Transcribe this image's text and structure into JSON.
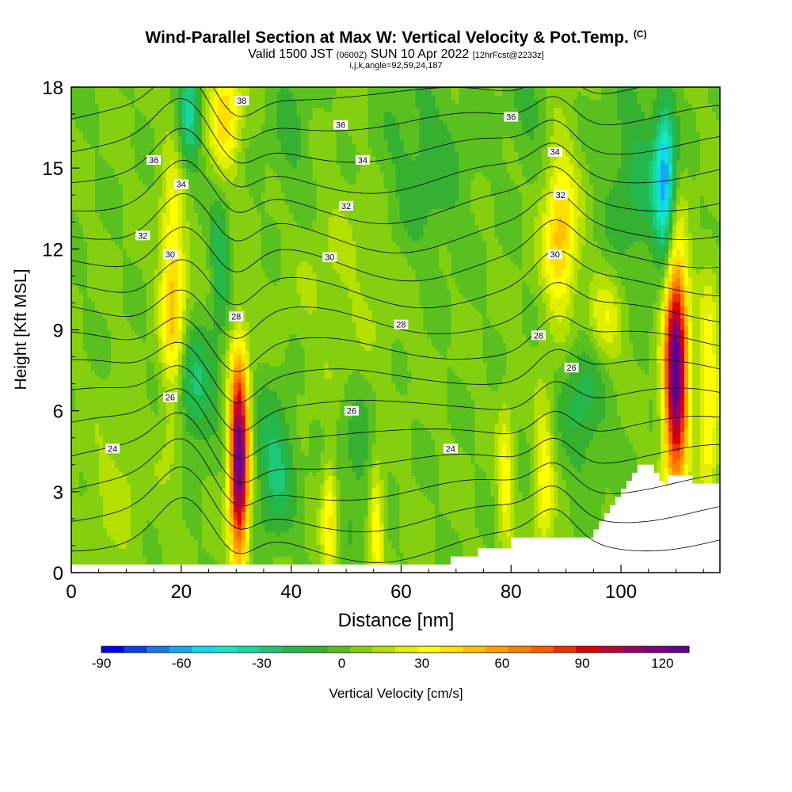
{
  "titles": {
    "main": "Wind-Parallel Section at Max W: Vertical Velocity & Pot.Temp.",
    "copyright": "(C)",
    "valid_prefix": "Valid 1500 JST",
    "valid_utc": "(0600Z)",
    "valid_date": "SUN 10 Apr 2022",
    "forecast": "[12hrFcst@2233z]",
    "indices": "i,j,k,angle=92,59,24,187"
  },
  "chart_data": {
    "type": "heatmap",
    "title": "Wind-Parallel Section at Max W: Vertical Velocity & Pot.Temp.",
    "xlabel": "Distance [nm]",
    "ylabel": "Height [Kft MSL]",
    "xlim": [
      0,
      118
    ],
    "ylim": [
      0,
      18
    ],
    "xticks": [
      0,
      20,
      40,
      60,
      80,
      100
    ],
    "yticks": [
      0,
      3,
      6,
      9,
      12,
      15,
      18
    ],
    "colorbar": {
      "label": "Vertical Velocity [cm/s]",
      "range": [
        -90,
        130
      ],
      "ticks": [
        -90,
        -60,
        -30,
        0,
        30,
        60,
        90,
        120
      ],
      "colors": [
        "#0000f0",
        "#0a3cf0",
        "#1478f0",
        "#12aaf0",
        "#10d8f0",
        "#12e8c8",
        "#18d8a0",
        "#1ec878",
        "#22b84c",
        "#36b030",
        "#5ac020",
        "#84d010",
        "#b4e000",
        "#e0f000",
        "#ffff00",
        "#ffe000",
        "#ffc000",
        "#ffa000",
        "#ff8000",
        "#ff5a00",
        "#f03000",
        "#e00000",
        "#c00030",
        "#a00060",
        "#800080",
        "#600090"
      ]
    },
    "velocity_cells": [
      {
        "x": 30.5,
        "y": 4.2,
        "w": 130,
        "sx": 1.2,
        "sy": 2.6
      },
      {
        "x": 110,
        "y": 7.5,
        "w": 130,
        "sx": 1.5,
        "sy": 3.0
      },
      {
        "x": 18.5,
        "y": 10,
        "w": 45,
        "sx": 1.6,
        "sy": 3.5
      },
      {
        "x": 28,
        "y": 17,
        "w": 40,
        "sx": 2.0,
        "sy": 1.5
      },
      {
        "x": 89,
        "y": 12.5,
        "w": 45,
        "sx": 2.2,
        "sy": 2.2
      },
      {
        "x": 47,
        "y": 2.0,
        "w": 35,
        "sx": 1.0,
        "sy": 1.7
      },
      {
        "x": 55.5,
        "y": 2.0,
        "w": 35,
        "sx": 1.0,
        "sy": 1.7
      },
      {
        "x": 79,
        "y": 3.5,
        "w": 30,
        "sx": 1.0,
        "sy": 1.8
      },
      {
        "x": 86,
        "y": 3.5,
        "w": 30,
        "sx": 1.2,
        "sy": 2.2
      },
      {
        "x": 116,
        "y": 6.5,
        "w": 35,
        "sx": 1.3,
        "sy": 3.0
      },
      {
        "x": 97,
        "y": 9.3,
        "w": 25,
        "sx": 2.5,
        "sy": 1.2
      },
      {
        "x": 108,
        "y": 14.5,
        "w": -60,
        "sx": 1.3,
        "sy": 2.0
      },
      {
        "x": 22,
        "y": 6.8,
        "w": -30,
        "sx": 3.0,
        "sy": 1.5
      },
      {
        "x": 37,
        "y": 4.0,
        "w": -30,
        "sx": 2.5,
        "sy": 1.8
      },
      {
        "x": 27,
        "y": 11.5,
        "w": -25,
        "sx": 1.2,
        "sy": 1.8
      },
      {
        "x": 21.5,
        "y": 17,
        "w": -35,
        "sx": 1.5,
        "sy": 1.5
      },
      {
        "x": 93,
        "y": 6.5,
        "w": -22,
        "sx": 3.0,
        "sy": 2.0
      },
      {
        "x": 103,
        "y": 14.5,
        "w": -20,
        "sx": 4.0,
        "sy": 2.5
      },
      {
        "x": 64,
        "y": 15,
        "w": -15,
        "sx": 6.0,
        "sy": 2.5
      },
      {
        "x": 52,
        "y": 4.0,
        "w": -15,
        "sx": 3.0,
        "sy": 2.0
      },
      {
        "x": 40,
        "y": 16,
        "w": -12,
        "sx": 3.0,
        "sy": 2.0
      },
      {
        "x": 83,
        "y": 17,
        "w": -12,
        "sx": 2.5,
        "sy": 1.5
      },
      {
        "x": 8,
        "y": 3.0,
        "w": 10,
        "sx": 4.0,
        "sy": 2.0
      },
      {
        "x": 50,
        "y": 11,
        "w": 8,
        "sx": 8.0,
        "sy": 3.0
      }
    ],
    "terrain": [
      [
        0,
        0.3
      ],
      [
        69,
        0.3
      ],
      [
        69,
        0.6
      ],
      [
        74,
        0.6
      ],
      [
        74,
        0.9
      ],
      [
        80,
        0.9
      ],
      [
        80,
        1.3
      ],
      [
        95,
        1.3
      ],
      [
        95,
        1.6
      ],
      [
        96,
        1.6
      ],
      [
        96,
        1.9
      ],
      [
        97,
        1.9
      ],
      [
        97,
        2.2
      ],
      [
        98,
        2.2
      ],
      [
        98,
        2.5
      ],
      [
        99,
        2.5
      ],
      [
        99,
        2.8
      ],
      [
        100,
        2.8
      ],
      [
        100,
        3.1
      ],
      [
        101,
        3.1
      ],
      [
        101,
        3.4
      ],
      [
        102,
        3.4
      ],
      [
        102,
        3.7
      ],
      [
        103,
        3.7
      ],
      [
        103,
        4.0
      ],
      [
        106,
        4.0
      ],
      [
        106,
        3.7
      ],
      [
        107,
        3.7
      ],
      [
        107,
        3.4
      ],
      [
        108,
        3.4
      ],
      [
        108,
        3.2
      ],
      [
        108.5,
        3.2
      ],
      [
        108.5,
        3.6
      ],
      [
        113,
        3.6
      ],
      [
        113,
        3.3
      ],
      [
        118,
        3.3
      ]
    ],
    "theta_levels": [
      22,
      23,
      24,
      25,
      26,
      27,
      28,
      29,
      30,
      31,
      32,
      33,
      34,
      35,
      36,
      37,
      38
    ],
    "theta_labels": [
      {
        "text": "38",
        "x": 31,
        "y": 17.5
      },
      {
        "text": "36",
        "x": 15,
        "y": 15.3
      },
      {
        "text": "36",
        "x": 49,
        "y": 16.6
      },
      {
        "text": "36",
        "x": 80,
        "y": 16.9
      },
      {
        "text": "34",
        "x": 20,
        "y": 14.4
      },
      {
        "text": "34",
        "x": 53,
        "y": 15.3
      },
      {
        "text": "34",
        "x": 88,
        "y": 15.6
      },
      {
        "text": "32",
        "x": 13,
        "y": 12.5
      },
      {
        "text": "32",
        "x": 50,
        "y": 13.6
      },
      {
        "text": "32",
        "x": 89,
        "y": 14.0
      },
      {
        "text": "30",
        "x": 18,
        "y": 11.8
      },
      {
        "text": "30",
        "x": 47,
        "y": 11.7
      },
      {
        "text": "30",
        "x": 88,
        "y": 11.8
      },
      {
        "text": "28",
        "x": 30,
        "y": 9.5
      },
      {
        "text": "28",
        "x": 60,
        "y": 9.2
      },
      {
        "text": "28",
        "x": 85,
        "y": 8.8
      },
      {
        "text": "26",
        "x": 18,
        "y": 6.5
      },
      {
        "text": "26",
        "x": 51,
        "y": 6.0
      },
      {
        "text": "26",
        "x": 91,
        "y": 7.6
      },
      {
        "text": "24",
        "x": 7.5,
        "y": 4.6
      },
      {
        "text": "24",
        "x": 69,
        "y": 4.6
      }
    ],
    "grid": false
  }
}
